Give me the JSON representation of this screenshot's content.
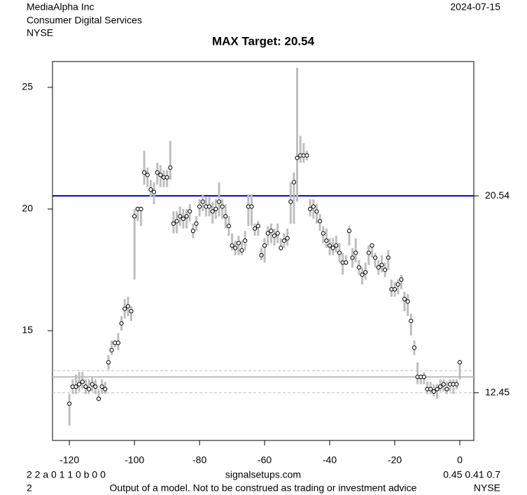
{
  "header": {
    "company": "MediaAlpha Inc",
    "sector": "Consumer Digital Services",
    "exchange": "NYSE",
    "date": "2024-07-15"
  },
  "footer": {
    "codes": "2 2 a 0 1 1 0 b 0 0",
    "site": "signalsetups.com",
    "stats": "0.45 0.41 0.7",
    "id": "2",
    "disclaimer": "Output of a model. Not to be construed as trading or investment advice",
    "exchange": "NYSE"
  },
  "chart_data": {
    "type": "rangebar",
    "title": "MAX Target: 20.54",
    "x": [
      -120,
      -119,
      -118,
      -117,
      -116,
      -115,
      -114,
      -113,
      -112,
      -111,
      -110,
      -109,
      -108,
      -107,
      -106,
      -105,
      -104,
      -103,
      -102,
      -101,
      -100,
      -99,
      -98,
      -97,
      -96,
      -95,
      -94,
      -93,
      -92,
      -91,
      -90,
      -89,
      -88,
      -87,
      -86,
      -85,
      -84,
      -83,
      -82,
      -81,
      -80,
      -79,
      -78,
      -77,
      -76,
      -75,
      -74,
      -73,
      -72,
      -71,
      -70,
      -69,
      -68,
      -67,
      -66,
      -65,
      -64,
      -63,
      -62,
      -61,
      -60,
      -59,
      -58,
      -57,
      -56,
      -55,
      -54,
      -53,
      -52,
      -51,
      -50,
      -49,
      -48,
      -47,
      -46,
      -45,
      -44,
      -43,
      -42,
      -41,
      -40,
      -39,
      -38,
      -37,
      -36,
      -35,
      -34,
      -33,
      -32,
      -31,
      -30,
      -29,
      -28,
      -27,
      -26,
      -25,
      -24,
      -23,
      -22,
      -21,
      -20,
      -19,
      -18,
      -17,
      -16,
      -15,
      -14,
      -13,
      -12,
      -11,
      -10,
      -9,
      -8,
      -7,
      -6,
      -5,
      -4,
      -3,
      -2,
      -1,
      0
    ],
    "close": [
      12.0,
      12.7,
      12.7,
      12.8,
      12.9,
      12.7,
      12.6,
      12.8,
      12.7,
      12.2,
      12.7,
      12.6,
      13.7,
      14.2,
      14.5,
      14.5,
      15.3,
      15.9,
      16.0,
      15.8,
      19.7,
      20.0,
      20.0,
      21.5,
      21.4,
      20.8,
      20.7,
      21.5,
      21.4,
      21.3,
      21.3,
      21.7,
      19.4,
      19.5,
      19.7,
      19.6,
      19.7,
      19.9,
      19.1,
      19.4,
      20.1,
      20.3,
      20.1,
      20.1,
      19.9,
      20.0,
      20.3,
      20.1,
      19.7,
      19.3,
      18.5,
      18.4,
      18.6,
      18.3,
      18.7,
      20.1,
      20.1,
      19.2,
      19.3,
      18.1,
      18.5,
      19.0,
      19.1,
      18.9,
      19.0,
      18.4,
      18.7,
      18.8,
      20.3,
      21.1,
      22.1,
      22.2,
      22.2,
      22.2,
      20.0,
      20.1,
      19.9,
      19.5,
      19.0,
      18.7,
      18.5,
      18.4,
      18.5,
      18.2,
      17.8,
      17.8,
      19.1,
      18.0,
      18.2,
      17.6,
      17.3,
      17.4,
      18.2,
      18.5,
      18.0,
      17.6,
      17.7,
      17.5,
      18.0,
      16.7,
      16.7,
      16.9,
      17.1,
      16.3,
      16.2,
      15.4,
      14.3,
      13.1,
      13.1,
      13.1,
      12.6,
      12.6,
      12.5,
      12.6,
      12.7,
      12.8,
      12.6,
      12.8,
      12.8,
      12.8,
      13.7
    ],
    "high": [
      12.4,
      13.0,
      13.2,
      13.3,
      13.3,
      13.0,
      13.0,
      13.1,
      13.0,
      12.6,
      13.0,
      12.9,
      14.0,
      14.6,
      14.6,
      14.9,
      15.6,
      16.3,
      16.4,
      16.0,
      20.0,
      20.1,
      20.1,
      22.4,
      21.7,
      21.2,
      21.1,
      21.9,
      21.8,
      21.6,
      21.6,
      22.8,
      19.9,
      19.9,
      20.1,
      20.0,
      20.0,
      20.2,
      19.4,
      19.7,
      20.4,
      20.6,
      20.5,
      20.5,
      20.3,
      20.4,
      21.1,
      20.4,
      20.2,
      19.7,
      19.0,
      18.7,
      18.9,
      18.7,
      19.1,
      20.6,
      20.6,
      19.4,
      19.5,
      18.4,
      18.8,
      19.3,
      19.4,
      19.2,
      19.4,
      18.8,
      19.0,
      19.2,
      21.1,
      21.5,
      25.8,
      23.0,
      22.7,
      22.4,
      20.4,
      20.4,
      20.2,
      19.8,
      19.3,
      19.2,
      18.8,
      18.8,
      18.9,
      18.6,
      18.2,
      18.1,
      19.3,
      18.4,
      18.8,
      17.9,
      17.6,
      17.8,
      18.5,
      18.6,
      18.2,
      17.9,
      18.1,
      17.8,
      18.3,
      17.1,
      17.0,
      17.1,
      17.3,
      16.6,
      16.5,
      15.7,
      14.6,
      13.7,
      13.2,
      13.3,
      12.9,
      12.9,
      12.8,
      12.8,
      13.0,
      13.0,
      12.9,
      13.0,
      13.0,
      13.0,
      13.8
    ],
    "low": [
      11.1,
      12.4,
      12.4,
      12.5,
      12.6,
      12.4,
      12.4,
      12.5,
      12.4,
      12.1,
      12.4,
      12.4,
      13.4,
      14.0,
      14.3,
      14.2,
      15.0,
      15.5,
      15.6,
      15.4,
      17.1,
      19.5,
      19.3,
      21.0,
      20.9,
      20.5,
      20.2,
      21.0,
      20.9,
      20.9,
      20.9,
      21.2,
      19.0,
      19.0,
      19.3,
      19.2,
      19.2,
      19.5,
      18.8,
      19.1,
      19.7,
      19.9,
      19.7,
      19.7,
      19.4,
      19.6,
      19.7,
      19.6,
      19.2,
      18.9,
      18.3,
      18.1,
      18.1,
      18.1,
      18.3,
      19.3,
      19.3,
      18.9,
      18.9,
      17.9,
      17.8,
      18.5,
      18.6,
      18.5,
      18.6,
      18.3,
      18.4,
      18.5,
      19.4,
      19.4,
      20.3,
      21.9,
      21.9,
      22.0,
      19.7,
      19.6,
      19.4,
      19.1,
      18.6,
      18.4,
      18.1,
      18.1,
      18.2,
      17.8,
      17.3,
      17.7,
      18.5,
      17.6,
      17.8,
      17.3,
      16.9,
      17.1,
      17.7,
      18.0,
      17.6,
      17.3,
      17.4,
      17.2,
      17.5,
      16.4,
      16.4,
      16.5,
      16.7,
      15.8,
      15.6,
      14.8,
      14.0,
      12.8,
      12.8,
      12.8,
      12.4,
      12.4,
      12.3,
      12.2,
      12.5,
      12.5,
      12.4,
      12.5,
      12.4,
      12.6,
      13.0
    ],
    "bar_color": "#bebebe",
    "point_color": "#000000",
    "hlines": [
      {
        "value": 20.54,
        "label": "20.54",
        "color": "#0000cc",
        "style": "solid"
      },
      {
        "value": 12.45,
        "label": "12.45",
        "color": "#bebebe",
        "style": "dashed"
      },
      {
        "value": 13.36,
        "color": "#bebebe",
        "style": "dashed"
      },
      {
        "value": 13.1,
        "color": "#bebebe",
        "style": "solid"
      }
    ],
    "xlim": [
      -125.2,
      4.3
    ],
    "ylim": [
      10.49,
      26.06
    ],
    "xticks": [
      -120,
      -100,
      -80,
      -60,
      -40,
      -20,
      0
    ],
    "yticks": [
      15,
      20,
      25
    ]
  }
}
